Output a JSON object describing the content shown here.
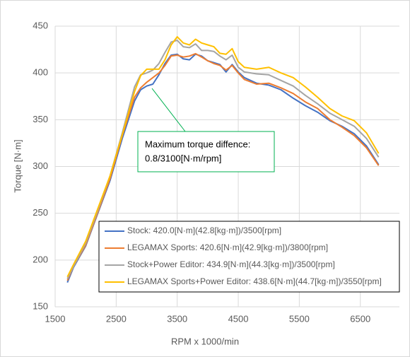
{
  "chart_data": {
    "type": "line",
    "xlabel": "RPM x 1000/min",
    "ylabel": "Torque [N·m]",
    "annotation": [
      "Maximum torque diffence:",
      "0.8/3100[N·m/rpm]"
    ],
    "x": [
      1700,
      1800,
      2000,
      2200,
      2400,
      2600,
      2800,
      2900,
      3000,
      3100,
      3200,
      3300,
      3400,
      3500,
      3600,
      3700,
      3800,
      3900,
      4000,
      4100,
      4200,
      4300,
      4400,
      4500,
      4600,
      4800,
      5000,
      5200,
      5400,
      5600,
      5800,
      6000,
      6200,
      6400,
      6600,
      6800
    ],
    "series": [
      {
        "name": "Stock: 420.0[N·m](42.8[kg·m])/3500[rpm]",
        "color": "#4472c4",
        "values": [
          176,
          192,
          215,
          250,
          285,
          330,
          370,
          382,
          386,
          388,
          398,
          410,
          419,
          420,
          415,
          414,
          420,
          418,
          413,
          411,
          409,
          401,
          409,
          401,
          395,
          389,
          387,
          382,
          373,
          365,
          358,
          349,
          343,
          335,
          322,
          302
        ]
      },
      {
        "name": "LEGAMAX Sports: 420.6[N·m](42.9[kg·m])/3800[rpm]",
        "color": "#ed7d31",
        "values": [
          178,
          193,
          216,
          251,
          287,
          333,
          374,
          384,
          390,
          395,
          400,
          408,
          418,
          419,
          417,
          418,
          420.6,
          417,
          413,
          410,
          408,
          403,
          408,
          400,
          393,
          388,
          389,
          384,
          378,
          369,
          362,
          350,
          342,
          333,
          320,
          301
        ]
      },
      {
        "name": "Stock+Power Editor: 434.9[N·m](44.3[kg·m])/3500[rpm]",
        "color": "#a5a5a5",
        "values": [
          180,
          193,
          218,
          253,
          290,
          336,
          385,
          398,
          400,
          403,
          410,
          422,
          433,
          434.9,
          428,
          427,
          431,
          424,
          424,
          423,
          418,
          414,
          419,
          406,
          401,
          399,
          398,
          392,
          386,
          376,
          367,
          357,
          350,
          343,
          330,
          310
        ]
      },
      {
        "name": "LEGAMAX Sports+Power Editor: 438.6[N·m](44.7[kg·m])/3550[rpm]",
        "color": "#ffc000",
        "values": [
          182,
          195,
          220,
          255,
          290,
          334,
          380,
          397,
          404,
          404,
          404,
          414,
          430,
          438.6,
          432,
          430,
          436,
          432,
          430,
          428,
          421,
          420,
          426,
          412,
          406,
          404,
          406,
          400,
          395,
          385,
          374,
          362,
          354,
          349,
          336,
          314
        ]
      }
    ],
    "xlim": [
      1500,
      7140
    ],
    "xticks": [
      1500,
      2500,
      3500,
      4500,
      5500,
      6500
    ],
    "ylim": [
      150,
      450
    ],
    "yticks": [
      150,
      200,
      250,
      300,
      350,
      400,
      450
    ],
    "grid": true,
    "legend": "lower right"
  }
}
